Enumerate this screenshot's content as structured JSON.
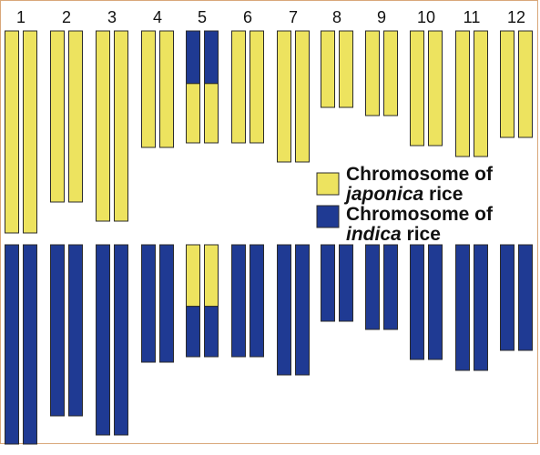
{
  "chromosome_numbers": [
    "1",
    "2",
    "3",
    "4",
    "5",
    "6",
    "7",
    "8",
    "9",
    "10",
    "11",
    "12"
  ],
  "colors": {
    "japonica": "#EDE35F",
    "indica": "#1F3A93",
    "outline": "#2b2b2b",
    "frame": "#d9a87a"
  },
  "legend": {
    "japonica": {
      "prefix": "Chromosome of ",
      "species": "japonica",
      "suffix": " rice"
    },
    "indica": {
      "prefix": "Chromosome of ",
      "species": "indica",
      "suffix": " rice"
    }
  },
  "chromosomes": {
    "top": [
      {
        "number": "1",
        "segments": [
          {
            "type": "japonica",
            "fraction": 1.0
          }
        ]
      },
      {
        "number": "2",
        "segments": [
          {
            "type": "japonica",
            "fraction": 1.0
          }
        ]
      },
      {
        "number": "3",
        "segments": [
          {
            "type": "japonica",
            "fraction": 1.0
          }
        ]
      },
      {
        "number": "4",
        "segments": [
          {
            "type": "japonica",
            "fraction": 1.0
          }
        ]
      },
      {
        "number": "5",
        "segments": [
          {
            "type": "indica",
            "fraction": 0.47
          },
          {
            "type": "japonica",
            "fraction": 0.53
          }
        ]
      },
      {
        "number": "6",
        "segments": [
          {
            "type": "japonica",
            "fraction": 1.0
          }
        ]
      },
      {
        "number": "7",
        "segments": [
          {
            "type": "japonica",
            "fraction": 1.0
          }
        ]
      },
      {
        "number": "8",
        "segments": [
          {
            "type": "japonica",
            "fraction": 1.0
          }
        ]
      },
      {
        "number": "9",
        "segments": [
          {
            "type": "japonica",
            "fraction": 1.0
          }
        ]
      },
      {
        "number": "10",
        "segments": [
          {
            "type": "japonica",
            "fraction": 1.0
          }
        ]
      },
      {
        "number": "11",
        "segments": [
          {
            "type": "japonica",
            "fraction": 1.0
          }
        ]
      },
      {
        "number": "12",
        "segments": [
          {
            "type": "japonica",
            "fraction": 1.0
          }
        ]
      }
    ],
    "bottom": [
      {
        "number": "1",
        "segments": [
          {
            "type": "indica",
            "fraction": 1.0
          }
        ]
      },
      {
        "number": "2",
        "segments": [
          {
            "type": "indica",
            "fraction": 1.0
          }
        ]
      },
      {
        "number": "3",
        "segments": [
          {
            "type": "indica",
            "fraction": 1.0
          }
        ]
      },
      {
        "number": "4",
        "segments": [
          {
            "type": "indica",
            "fraction": 1.0
          }
        ]
      },
      {
        "number": "5",
        "segments": [
          {
            "type": "japonica",
            "fraction": 0.55
          },
          {
            "type": "indica",
            "fraction": 0.45
          }
        ]
      },
      {
        "number": "6",
        "segments": [
          {
            "type": "indica",
            "fraction": 1.0
          }
        ]
      },
      {
        "number": "7",
        "segments": [
          {
            "type": "indica",
            "fraction": 1.0
          }
        ]
      },
      {
        "number": "8",
        "segments": [
          {
            "type": "indica",
            "fraction": 1.0
          }
        ]
      },
      {
        "number": "9",
        "segments": [
          {
            "type": "indica",
            "fraction": 1.0
          }
        ]
      },
      {
        "number": "10",
        "segments": [
          {
            "type": "indica",
            "fraction": 1.0
          }
        ]
      },
      {
        "number": "11",
        "segments": [
          {
            "type": "indica",
            "fraction": 1.0
          }
        ]
      },
      {
        "number": "12",
        "segments": [
          {
            "type": "indica",
            "fraction": 1.0
          }
        ]
      }
    ]
  }
}
